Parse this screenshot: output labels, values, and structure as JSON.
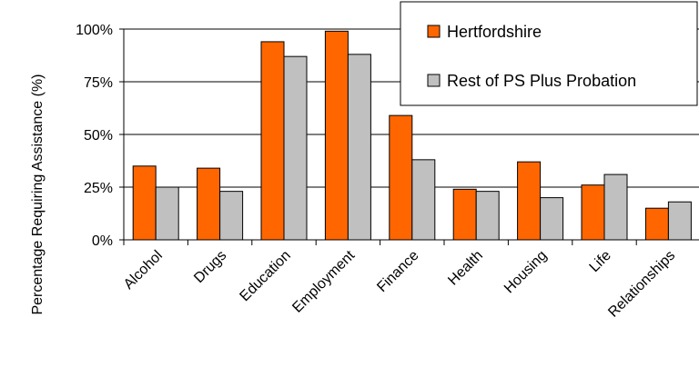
{
  "chart_data": {
    "type": "bar",
    "title": "",
    "xlabel": "",
    "ylabel": "Percentage Requiring Assistance (%)",
    "ylim": [
      0,
      100
    ],
    "yticks": [
      "0%",
      "25%",
      "50%",
      "75%",
      "100%"
    ],
    "ytick_values": [
      0,
      25,
      50,
      75,
      100
    ],
    "grid": true,
    "legend_position": "top-right",
    "categories": [
      "Alcohol",
      "Drugs",
      "Education",
      "Employment",
      "Finance",
      "Health",
      "Housing",
      "Life",
      "Relationships"
    ],
    "series": [
      {
        "name": "Hertfordshire",
        "color": "#ff6600",
        "values": [
          35,
          34,
          94,
          99,
          59,
          24,
          37,
          26,
          15
        ]
      },
      {
        "name": "Rest of PS Plus Probation",
        "color": "#c0c0c0",
        "values": [
          25,
          23,
          87,
          88,
          38,
          23,
          20,
          31,
          18
        ]
      }
    ]
  }
}
